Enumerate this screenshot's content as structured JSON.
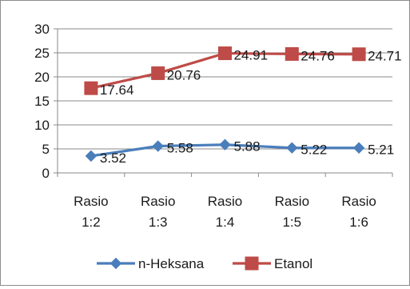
{
  "chart_data": {
    "type": "line",
    "categories": [
      [
        "Rasio",
        "1:2"
      ],
      [
        "Rasio",
        "1:3"
      ],
      [
        "Rasio",
        "1:4"
      ],
      [
        "Rasio",
        "1:5"
      ],
      [
        "Rasio",
        "1:6"
      ]
    ],
    "ylim": [
      0,
      30
    ],
    "yticks": [
      0,
      5,
      10,
      15,
      20,
      25,
      30
    ],
    "grid": true,
    "legend_position": "bottom",
    "series": [
      {
        "name": "n-Heksana",
        "values": [
          3.52,
          5.58,
          5.88,
          5.22,
          5.21
        ],
        "labels": [
          "3.52",
          "5.58",
          "5.88",
          "5.22",
          "5.21"
        ],
        "color": "#4a7ebb",
        "marker": "diamond"
      },
      {
        "name": "Etanol",
        "values": [
          17.64,
          20.76,
          24.91,
          24.76,
          24.71
        ],
        "labels": [
          "17.64",
          "20.76",
          "24.91",
          "24.76",
          "24.71"
        ],
        "color": "#be4b48",
        "marker": "square"
      }
    ]
  }
}
